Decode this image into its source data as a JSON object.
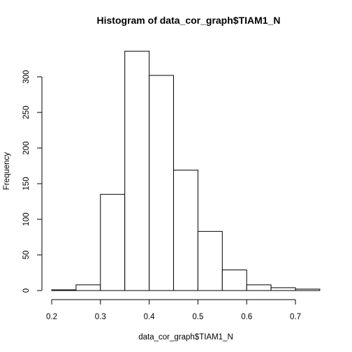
{
  "chart_data": {
    "type": "bar",
    "title": "Histogram of data_cor_graph$TIAM1_N",
    "xlabel": "data_cor_graph$TIAM1_N",
    "ylabel": "Frequency",
    "bin_edges": [
      0.2,
      0.25,
      0.3,
      0.35,
      0.4,
      0.45,
      0.5,
      0.55,
      0.6,
      0.65,
      0.7,
      0.75
    ],
    "values": [
      1,
      8,
      135,
      336,
      302,
      169,
      83,
      29,
      8,
      4,
      2
    ],
    "xlim": [
      0.2,
      0.75
    ],
    "ylim": [
      0,
      300
    ],
    "x_ticks": [
      "0.2",
      "0.3",
      "0.4",
      "0.5",
      "0.6",
      "0.7"
    ],
    "y_ticks": [
      "0",
      "50",
      "100",
      "150",
      "200",
      "250",
      "300"
    ],
    "grid": false,
    "legend": "none"
  }
}
